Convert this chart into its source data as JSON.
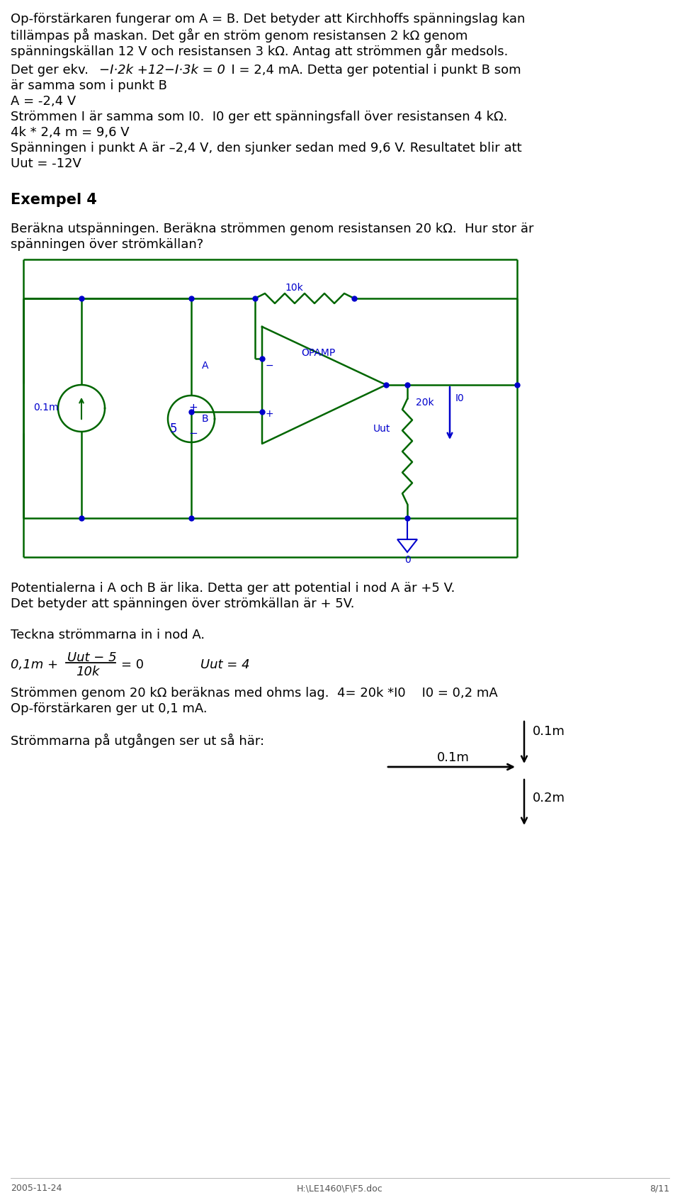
{
  "bg_color": "#ffffff",
  "text_color": "#000000",
  "circuit_color": "#006600",
  "label_color": "#0000cc",
  "page_width": 9.6,
  "page_height": 16.86,
  "footer_date": "2005-11-24",
  "footer_file": "H:\\LE1460\\F\\F5.doc",
  "footer_page": "8/11",
  "p1_line1": "Op-förstärkaren fungerar om A = B. Det betyder att Kirchhoffs spänningslag kan",
  "p1_line2": "tillämpas på maskan. Det går en ström genom resistansen 2 kΩ genom",
  "p1_line3": "spänningskällan 12 V och resistansen 3 kΩ. Antag att strömmen går medsols.",
  "p2_prefix": "Det ger ekv.    ",
  "p2_eq": "−I·2k +12−I·3k = 0",
  "p2_suffix": "  I = 2,4 mA. Detta ger potential i punkt B som",
  "p2_line2": "är samma som i punkt B",
  "p3": "A = -2,4 V",
  "p4": "Strömmen I är samma som I0.  I0 ger ett spänningsfall över resistansen 4 kΩ.",
  "p5": "4k * 2,4 m = 9,6 V",
  "p6": "Spänningen i punkt A är –2,4 V, den sjunker sedan med 9,6 V. Resultatet blir att",
  "p7": "Uut = -12V",
  "heading": "Exempel 4",
  "cd1": "Beräkna utspänningen. Beräkna strömmen genom resistansen 20 kΩ.  Hur stor är",
  "cd2": "spänningen över strömkällan?",
  "post1": "Potentialerna i A och B är lika. Detta ger att potential i nod A är +5 V.",
  "post2": "Det betyder att spänningen över strömkällan är + 5V.",
  "post3": "Teckna strömmarna in i nod A.",
  "frac_prefix": "0,1m +",
  "frac_num": "Uut − 5",
  "frac_den": "10k",
  "frac_eq": "= 0",
  "frac_right": "Uut = 4",
  "post5": "Strömmen genom 20 kΩ beräknas med ohms lag.  4= 20k *I0    I0 = 0,2 mA",
  "post6": "Op-förstärkaren ger ut 0,1 mA.",
  "post7": "Strömmarna på utgången ser ut så här:",
  "lbl_01m_horiz": "0.1m",
  "lbl_01m_vert": "0.1m",
  "lbl_02m_vert": "0.2m"
}
